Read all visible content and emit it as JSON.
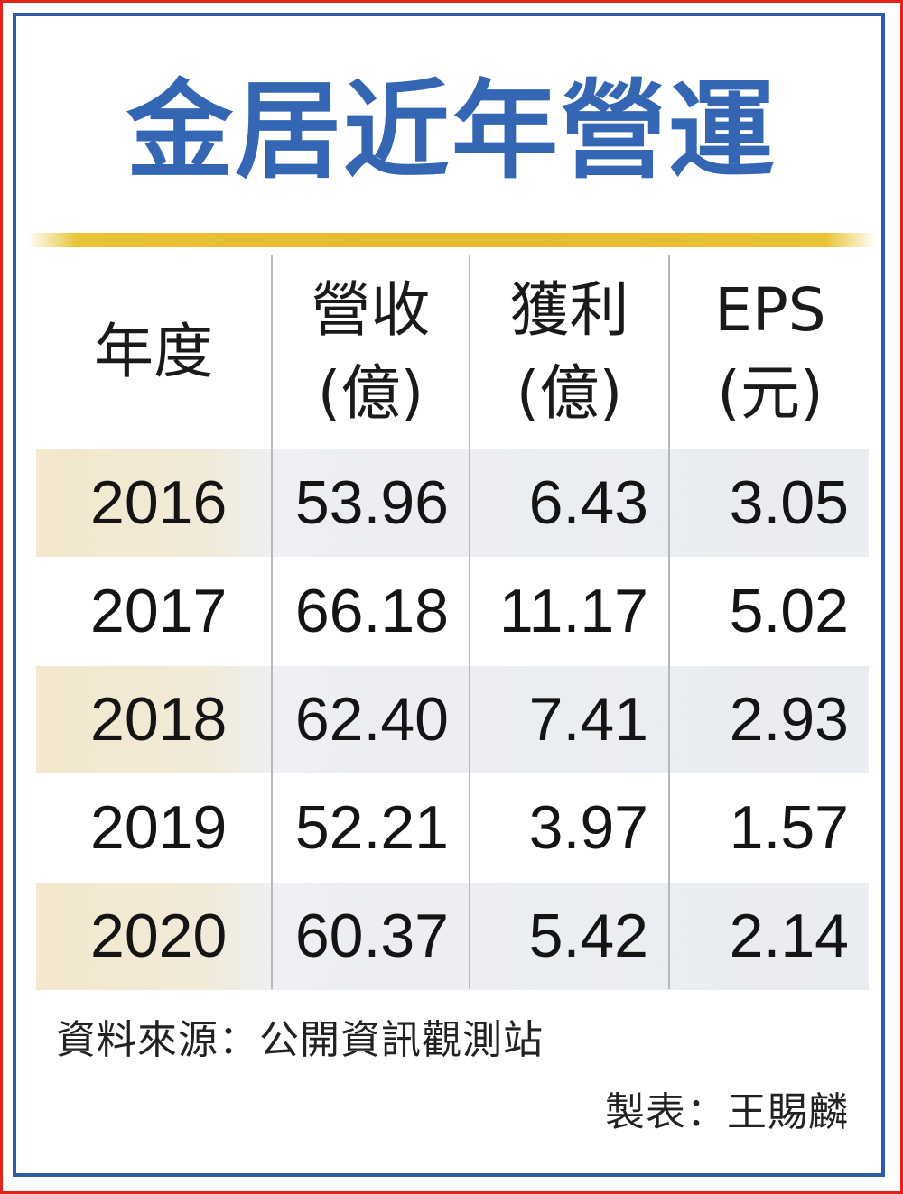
{
  "title": "金居近年營運",
  "columns": [
    {
      "lines": [
        "年度"
      ]
    },
    {
      "lines": [
        "營收",
        "(億)"
      ]
    },
    {
      "lines": [
        "獲利",
        "(億)"
      ]
    },
    {
      "lines": [
        "EPS",
        "(元)"
      ]
    }
  ],
  "rows": [
    {
      "year": "2016",
      "revenue": "53.96",
      "profit": "6.43",
      "eps": "3.05"
    },
    {
      "year": "2017",
      "revenue": "66.18",
      "profit": "11.17",
      "eps": "5.02"
    },
    {
      "year": "2018",
      "revenue": "62.40",
      "profit": "7.41",
      "eps": "2.93"
    },
    {
      "year": "2019",
      "revenue": "52.21",
      "profit": "3.97",
      "eps": "1.57"
    },
    {
      "year": "2020",
      "revenue": "60.37",
      "profit": "5.42",
      "eps": "2.14"
    }
  ],
  "source": "資料來源：公開資訊觀測站",
  "maker": "製表：王賜麟",
  "colors": {
    "title": "#3566b3",
    "outer_border": "#e2231a",
    "inner_border": "#2f5aa8",
    "accent_line": "#e2bb2d",
    "row_shade": "#e9ecf0"
  },
  "chart_data": {
    "type": "table",
    "title": "金居近年營運",
    "columns": [
      "年度",
      "營收(億)",
      "獲利(億)",
      "EPS(元)"
    ],
    "rows": [
      [
        "2016",
        53.96,
        6.43,
        3.05
      ],
      [
        "2017",
        66.18,
        11.17,
        5.02
      ],
      [
        "2018",
        62.4,
        7.41,
        2.93
      ],
      [
        "2019",
        52.21,
        3.97,
        1.57
      ],
      [
        "2020",
        60.37,
        5.42,
        2.14
      ]
    ]
  }
}
